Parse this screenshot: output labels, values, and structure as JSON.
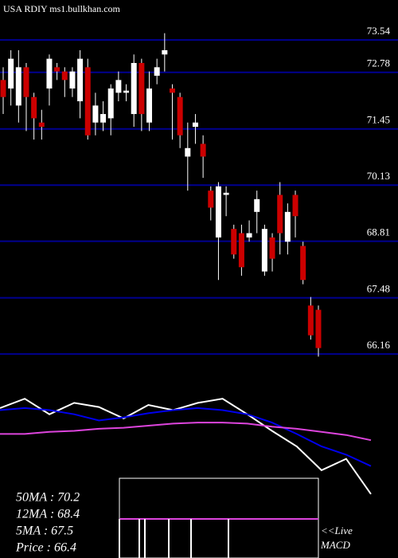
{
  "chart_data": {
    "type": "candlestick",
    "title": "USA RDIY ms1.bullkhan.com",
    "open": [
      72.6,
      72.4,
      72.0,
      72.9,
      72.2,
      71.6,
      72.4,
      72.9,
      72.8,
      72.4,
      72.1,
      72.9,
      71.6,
      71.6,
      71.7,
      72.3,
      72.3,
      71.8,
      73.0,
      71.6,
      72.7,
      73.2,
      72.4,
      72.2,
      70.8,
      71.5,
      71.1,
      70.0,
      68.9,
      69.9,
      69.1,
      69.0,
      68.9,
      69.5,
      68.1,
      68.9,
      69.9,
      68.8,
      69.9,
      68.7,
      67.3,
      67.2
    ],
    "high": [
      72.9,
      73.3,
      73.3,
      73.0,
      72.3,
      71.9,
      73.2,
      73.0,
      72.9,
      72.9,
      73.3,
      73.1,
      72.3,
      72.1,
      72.5,
      72.8,
      72.5,
      73.2,
      73.1,
      72.8,
      73.1,
      73.7,
      72.5,
      72.3,
      71.6,
      71.8,
      71.3,
      70.1,
      70.2,
      70.1,
      69.2,
      69.2,
      69.3,
      70.0,
      69.2,
      69.0,
      70.2,
      69.7,
      70.0,
      68.8,
      67.5,
      67.3
    ],
    "low": [
      71.8,
      72.0,
      71.6,
      71.4,
      71.2,
      71.2,
      72.0,
      72.6,
      72.2,
      72.2,
      71.7,
      71.2,
      71.3,
      71.4,
      71.3,
      72.1,
      72.1,
      71.5,
      71.4,
      71.4,
      72.5,
      72.8,
      71.2,
      71.0,
      70.0,
      71.1,
      70.3,
      69.3,
      67.9,
      69.4,
      68.4,
      68.0,
      68.8,
      69.0,
      68.0,
      68.1,
      68.5,
      68.5,
      68.9,
      67.8,
      66.5,
      66.1
    ],
    "close": [
      72.2,
      73.1,
      72.9,
      72.2,
      71.7,
      71.5,
      73.1,
      72.8,
      72.6,
      72.8,
      73.1,
      71.3,
      72.0,
      71.8,
      72.4,
      72.6,
      72.35,
      73.0,
      71.8,
      72.4,
      72.9,
      73.3,
      72.3,
      71.3,
      71.0,
      71.6,
      70.8,
      69.6,
      70.1,
      69.95,
      68.5,
      68.2,
      69.0,
      69.8,
      69.1,
      68.4,
      69.0,
      69.5,
      69.4,
      67.9,
      66.6,
      66.3
    ],
    "up_color": "#ffffff",
    "down_color": "#cc0000",
    "grid_color": "#000090",
    "ylim": [
      66.05,
      74.48
    ],
    "yticks": [
      73.54,
      72.78,
      71.45,
      70.13,
      68.81,
      67.48,
      66.16
    ],
    "grid": true,
    "indicators": {
      "type": "line",
      "ylim": [
        0,
        100
      ],
      "series": [
        {
          "color": "#ffffff",
          "values": [
            87,
            96,
            81,
            92,
            88,
            77,
            90,
            85,
            92,
            96,
            81,
            65,
            50,
            27,
            38,
            4
          ]
        },
        {
          "color": "#0000ee",
          "values": [
            85,
            87,
            85,
            81,
            75,
            78,
            82,
            85,
            87,
            85,
            81,
            73,
            62,
            50,
            42,
            31
          ]
        },
        {
          "color": "#dd44dd",
          "values": [
            62,
            62,
            64,
            65,
            67,
            68,
            70,
            72,
            73,
            73,
            72,
            69,
            67,
            64,
            61,
            56
          ]
        }
      ]
    },
    "labels": [
      "50MA : 70.2",
      "12MA : 68.4",
      "5MA : 67.5",
      "Price  : 66.4"
    ],
    "macd_labels": [
      "<<Live",
      "MACD"
    ]
  }
}
